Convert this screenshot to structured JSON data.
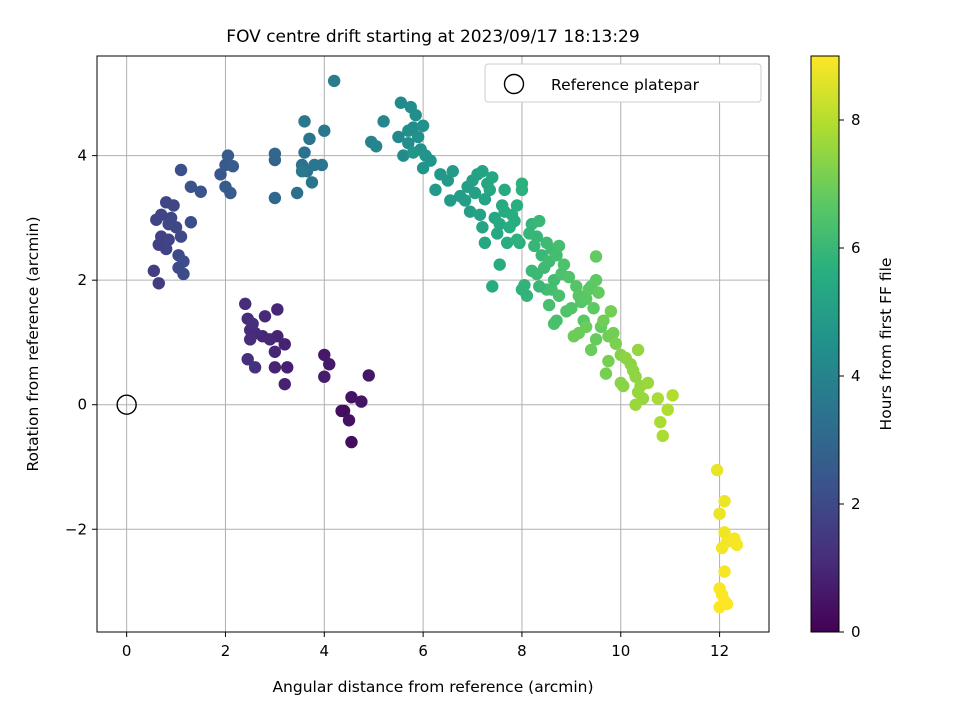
{
  "chart_data": {
    "type": "scatter",
    "title": "FOV centre drift starting at 2023/09/17 18:13:29",
    "xlabel": "Angular distance from reference (arcmin)",
    "ylabel": "Rotation from reference (arcmin)",
    "xlim": [
      -0.6,
      13.0
    ],
    "ylim": [
      -3.65,
      5.6
    ],
    "xticks": [
      0,
      2,
      4,
      6,
      8,
      10,
      12
    ],
    "yticks": [
      -2,
      0,
      2,
      4
    ],
    "grid": true,
    "legend": {
      "position": "top-right",
      "entries": [
        "Reference platepar"
      ]
    },
    "reference_point": {
      "x": 0,
      "y": 0
    },
    "colorbar": {
      "label": "Hours from first FF file",
      "range": [
        0,
        9.0
      ],
      "ticks": [
        0,
        2,
        4,
        6,
        8
      ],
      "colormap": "viridis"
    },
    "points": [
      {
        "x": 4.55,
        "y": -0.6,
        "t": 0.3
      },
      {
        "x": 4.35,
        "y": -0.1,
        "t": 0.35
      },
      {
        "x": 4.5,
        "y": -0.25,
        "t": 0.4
      },
      {
        "x": 4.55,
        "y": 0.12,
        "t": 0.45
      },
      {
        "x": 4.75,
        "y": 0.05,
        "t": 0.5
      },
      {
        "x": 4.9,
        "y": 0.47,
        "t": 0.55
      },
      {
        "x": 4.4,
        "y": -0.1,
        "t": 0.3
      },
      {
        "x": 4.0,
        "y": 0.8,
        "t": 0.6
      },
      {
        "x": 4.1,
        "y": 0.65,
        "t": 0.65
      },
      {
        "x": 4.0,
        "y": 0.45,
        "t": 0.7
      },
      {
        "x": 3.25,
        "y": 0.6,
        "t": 0.8
      },
      {
        "x": 3.2,
        "y": 0.33,
        "t": 0.85
      },
      {
        "x": 3.2,
        "y": 0.97,
        "t": 0.85
      },
      {
        "x": 3.0,
        "y": 0.6,
        "t": 0.9
      },
      {
        "x": 3.05,
        "y": 1.1,
        "t": 0.9
      },
      {
        "x": 3.0,
        "y": 0.85,
        "t": 0.95
      },
      {
        "x": 3.05,
        "y": 1.53,
        "t": 0.95
      },
      {
        "x": 2.9,
        "y": 1.05,
        "t": 1.0
      },
      {
        "x": 2.75,
        "y": 1.1,
        "t": 1.0
      },
      {
        "x": 2.8,
        "y": 1.42,
        "t": 1.05
      },
      {
        "x": 2.6,
        "y": 1.15,
        "t": 1.05
      },
      {
        "x": 2.5,
        "y": 1.2,
        "t": 1.1
      },
      {
        "x": 2.45,
        "y": 1.38,
        "t": 1.1
      },
      {
        "x": 2.4,
        "y": 1.62,
        "t": 1.15
      },
      {
        "x": 2.5,
        "y": 1.05,
        "t": 1.15
      },
      {
        "x": 2.55,
        "y": 1.3,
        "t": 1.2
      },
      {
        "x": 2.45,
        "y": 0.73,
        "t": 1.2
      },
      {
        "x": 2.6,
        "y": 0.6,
        "t": 1.25
      },
      {
        "x": 0.65,
        "y": 1.95,
        "t": 1.6
      },
      {
        "x": 0.55,
        "y": 2.15,
        "t": 1.65
      },
      {
        "x": 0.65,
        "y": 2.57,
        "t": 1.7
      },
      {
        "x": 0.8,
        "y": 2.5,
        "t": 1.75
      },
      {
        "x": 0.7,
        "y": 2.7,
        "t": 1.75
      },
      {
        "x": 0.85,
        "y": 2.65,
        "t": 1.8
      },
      {
        "x": 0.6,
        "y": 2.97,
        "t": 1.8
      },
      {
        "x": 0.7,
        "y": 3.05,
        "t": 1.85
      },
      {
        "x": 0.8,
        "y": 3.25,
        "t": 1.85
      },
      {
        "x": 0.9,
        "y": 3.0,
        "t": 1.9
      },
      {
        "x": 0.95,
        "y": 3.2,
        "t": 1.9
      },
      {
        "x": 0.85,
        "y": 2.9,
        "t": 1.95
      },
      {
        "x": 1.0,
        "y": 2.85,
        "t": 1.95
      },
      {
        "x": 1.05,
        "y": 2.4,
        "t": 2.0
      },
      {
        "x": 1.1,
        "y": 2.7,
        "t": 2.0
      },
      {
        "x": 1.05,
        "y": 2.2,
        "t": 2.05
      },
      {
        "x": 1.15,
        "y": 2.1,
        "t": 2.05
      },
      {
        "x": 1.15,
        "y": 2.3,
        "t": 2.1
      },
      {
        "x": 1.3,
        "y": 2.93,
        "t": 2.1
      },
      {
        "x": 1.1,
        "y": 3.77,
        "t": 2.2
      },
      {
        "x": 1.3,
        "y": 3.5,
        "t": 2.25
      },
      {
        "x": 1.5,
        "y": 3.42,
        "t": 2.3
      },
      {
        "x": 1.9,
        "y": 3.7,
        "t": 2.45
      },
      {
        "x": 2.0,
        "y": 3.85,
        "t": 2.5
      },
      {
        "x": 2.05,
        "y": 4.0,
        "t": 2.55
      },
      {
        "x": 2.1,
        "y": 3.4,
        "t": 2.55
      },
      {
        "x": 2.15,
        "y": 3.83,
        "t": 2.6
      },
      {
        "x": 2.0,
        "y": 3.5,
        "t": 2.6
      },
      {
        "x": 3.0,
        "y": 3.93,
        "t": 2.9
      },
      {
        "x": 3.0,
        "y": 4.03,
        "t": 2.95
      },
      {
        "x": 3.0,
        "y": 3.32,
        "t": 3.0
      },
      {
        "x": 3.45,
        "y": 3.4,
        "t": 3.3
      },
      {
        "x": 3.55,
        "y": 3.85,
        "t": 3.35
      },
      {
        "x": 3.6,
        "y": 4.05,
        "t": 3.35
      },
      {
        "x": 3.65,
        "y": 3.75,
        "t": 3.4
      },
      {
        "x": 3.7,
        "y": 4.27,
        "t": 3.45
      },
      {
        "x": 3.75,
        "y": 3.57,
        "t": 3.45
      },
      {
        "x": 3.8,
        "y": 3.85,
        "t": 3.5
      },
      {
        "x": 3.95,
        "y": 3.85,
        "t": 3.5
      },
      {
        "x": 4.0,
        "y": 4.4,
        "t": 3.55
      },
      {
        "x": 3.6,
        "y": 4.55,
        "t": 3.55
      },
      {
        "x": 3.55,
        "y": 3.75,
        "t": 3.6
      },
      {
        "x": 4.2,
        "y": 5.2,
        "t": 3.7
      },
      {
        "x": 4.95,
        "y": 4.22,
        "t": 4.0
      },
      {
        "x": 5.05,
        "y": 4.15,
        "t": 4.05
      },
      {
        "x": 5.2,
        "y": 4.55,
        "t": 4.1
      },
      {
        "x": 5.5,
        "y": 4.3,
        "t": 4.2
      },
      {
        "x": 5.55,
        "y": 4.85,
        "t": 4.25
      },
      {
        "x": 5.6,
        "y": 4.0,
        "t": 4.3
      },
      {
        "x": 5.7,
        "y": 4.2,
        "t": 4.35
      },
      {
        "x": 5.75,
        "y": 4.78,
        "t": 4.35
      },
      {
        "x": 5.8,
        "y": 4.45,
        "t": 4.4
      },
      {
        "x": 5.85,
        "y": 4.65,
        "t": 4.45
      },
      {
        "x": 5.9,
        "y": 4.3,
        "t": 4.5
      },
      {
        "x": 5.95,
        "y": 4.1,
        "t": 4.5
      },
      {
        "x": 6.0,
        "y": 4.48,
        "t": 4.55
      },
      {
        "x": 6.05,
        "y": 4.0,
        "t": 4.6
      },
      {
        "x": 6.0,
        "y": 3.8,
        "t": 4.6
      },
      {
        "x": 6.15,
        "y": 3.92,
        "t": 4.65
      },
      {
        "x": 5.8,
        "y": 4.05,
        "t": 4.7
      },
      {
        "x": 5.7,
        "y": 4.4,
        "t": 4.4
      },
      {
        "x": 6.35,
        "y": 3.7,
        "t": 4.75
      },
      {
        "x": 6.25,
        "y": 3.45,
        "t": 4.8
      },
      {
        "x": 6.5,
        "y": 3.6,
        "t": 4.85
      },
      {
        "x": 6.55,
        "y": 3.28,
        "t": 4.9
      },
      {
        "x": 6.6,
        "y": 3.75,
        "t": 4.9
      },
      {
        "x": 6.75,
        "y": 3.35,
        "t": 4.95
      },
      {
        "x": 6.85,
        "y": 3.28,
        "t": 5.0
      },
      {
        "x": 6.9,
        "y": 3.5,
        "t": 5.05
      },
      {
        "x": 6.95,
        "y": 3.1,
        "t": 5.05
      },
      {
        "x": 7.0,
        "y": 3.6,
        "t": 5.1
      },
      {
        "x": 7.05,
        "y": 3.4,
        "t": 5.1
      },
      {
        "x": 7.1,
        "y": 3.7,
        "t": 5.15
      },
      {
        "x": 7.15,
        "y": 3.05,
        "t": 5.15
      },
      {
        "x": 7.2,
        "y": 3.75,
        "t": 5.2
      },
      {
        "x": 7.25,
        "y": 3.3,
        "t": 5.2
      },
      {
        "x": 7.3,
        "y": 3.55,
        "t": 5.25
      },
      {
        "x": 7.2,
        "y": 2.85,
        "t": 5.25
      },
      {
        "x": 7.25,
        "y": 2.6,
        "t": 5.3
      },
      {
        "x": 7.35,
        "y": 3.45,
        "t": 5.3
      },
      {
        "x": 7.4,
        "y": 3.65,
        "t": 5.35
      },
      {
        "x": 7.45,
        "y": 3.0,
        "t": 5.35
      },
      {
        "x": 7.5,
        "y": 2.75,
        "t": 5.4
      },
      {
        "x": 7.55,
        "y": 2.9,
        "t": 5.4
      },
      {
        "x": 7.6,
        "y": 3.2,
        "t": 5.45
      },
      {
        "x": 7.65,
        "y": 3.45,
        "t": 5.45
      },
      {
        "x": 7.55,
        "y": 2.25,
        "t": 5.5
      },
      {
        "x": 7.4,
        "y": 1.9,
        "t": 5.5
      },
      {
        "x": 7.7,
        "y": 2.6,
        "t": 5.55
      },
      {
        "x": 7.75,
        "y": 2.85,
        "t": 5.55
      },
      {
        "x": 7.8,
        "y": 3.05,
        "t": 5.6
      },
      {
        "x": 7.85,
        "y": 2.95,
        "t": 5.6
      },
      {
        "x": 7.9,
        "y": 3.2,
        "t": 5.65
      },
      {
        "x": 7.95,
        "y": 2.6,
        "t": 5.65
      },
      {
        "x": 8.0,
        "y": 3.55,
        "t": 5.7
      },
      {
        "x": 8.0,
        "y": 3.45,
        "t": 5.7
      },
      {
        "x": 7.9,
        "y": 2.65,
        "t": 5.75
      },
      {
        "x": 7.65,
        "y": 3.1,
        "t": 5.5
      },
      {
        "x": 8.0,
        "y": 1.85,
        "t": 5.8
      },
      {
        "x": 8.05,
        "y": 1.92,
        "t": 5.85
      },
      {
        "x": 8.1,
        "y": 1.75,
        "t": 5.85
      },
      {
        "x": 8.15,
        "y": 2.75,
        "t": 5.9
      },
      {
        "x": 8.2,
        "y": 2.9,
        "t": 5.9
      },
      {
        "x": 8.25,
        "y": 2.55,
        "t": 5.95
      },
      {
        "x": 8.3,
        "y": 2.7,
        "t": 5.95
      },
      {
        "x": 8.35,
        "y": 2.95,
        "t": 6.0
      },
      {
        "x": 8.4,
        "y": 2.4,
        "t": 6.0
      },
      {
        "x": 8.3,
        "y": 2.1,
        "t": 6.05
      },
      {
        "x": 8.2,
        "y": 2.15,
        "t": 6.05
      },
      {
        "x": 8.45,
        "y": 2.2,
        "t": 6.1
      },
      {
        "x": 8.5,
        "y": 2.6,
        "t": 6.1
      },
      {
        "x": 8.55,
        "y": 2.3,
        "t": 6.15
      },
      {
        "x": 8.6,
        "y": 2.5,
        "t": 6.15
      },
      {
        "x": 8.65,
        "y": 2.0,
        "t": 6.2
      },
      {
        "x": 8.7,
        "y": 2.4,
        "t": 6.2
      },
      {
        "x": 8.75,
        "y": 2.55,
        "t": 6.25
      },
      {
        "x": 8.6,
        "y": 1.85,
        "t": 6.25
      },
      {
        "x": 8.55,
        "y": 1.6,
        "t": 6.3
      },
      {
        "x": 8.7,
        "y": 1.35,
        "t": 6.3
      },
      {
        "x": 8.65,
        "y": 1.3,
        "t": 6.35
      },
      {
        "x": 8.75,
        "y": 1.75,
        "t": 6.35
      },
      {
        "x": 8.8,
        "y": 2.1,
        "t": 6.4
      },
      {
        "x": 8.85,
        "y": 2.25,
        "t": 6.4
      },
      {
        "x": 8.9,
        "y": 1.5,
        "t": 6.45
      },
      {
        "x": 8.95,
        "y": 2.05,
        "t": 6.45
      },
      {
        "x": 9.0,
        "y": 1.55,
        "t": 6.5
      },
      {
        "x": 8.5,
        "y": 1.85,
        "t": 6.2
      },
      {
        "x": 8.35,
        "y": 1.9,
        "t": 6.0
      },
      {
        "x": 9.1,
        "y": 1.9,
        "t": 6.55
      },
      {
        "x": 9.15,
        "y": 1.75,
        "t": 6.6
      },
      {
        "x": 9.2,
        "y": 1.65,
        "t": 6.6
      },
      {
        "x": 9.25,
        "y": 1.35,
        "t": 6.65
      },
      {
        "x": 9.3,
        "y": 1.7,
        "t": 6.65
      },
      {
        "x": 9.35,
        "y": 1.85,
        "t": 6.7
      },
      {
        "x": 9.4,
        "y": 1.9,
        "t": 6.7
      },
      {
        "x": 9.45,
        "y": 1.55,
        "t": 6.75
      },
      {
        "x": 9.5,
        "y": 2.0,
        "t": 6.75
      },
      {
        "x": 9.5,
        "y": 2.38,
        "t": 6.8
      },
      {
        "x": 9.55,
        "y": 1.8,
        "t": 6.8
      },
      {
        "x": 9.6,
        "y": 1.25,
        "t": 6.85
      },
      {
        "x": 9.5,
        "y": 1.05,
        "t": 6.85
      },
      {
        "x": 9.4,
        "y": 0.88,
        "t": 6.9
      },
      {
        "x": 9.3,
        "y": 1.25,
        "t": 6.9
      },
      {
        "x": 9.15,
        "y": 1.15,
        "t": 6.95
      },
      {
        "x": 9.05,
        "y": 1.1,
        "t": 6.95
      },
      {
        "x": 9.65,
        "y": 1.35,
        "t": 7.0
      },
      {
        "x": 9.75,
        "y": 1.1,
        "t": 7.0
      },
      {
        "x": 9.8,
        "y": 1.5,
        "t": 7.05
      },
      {
        "x": 9.85,
        "y": 1.15,
        "t": 7.05
      },
      {
        "x": 9.75,
        "y": 0.7,
        "t": 7.1
      },
      {
        "x": 9.7,
        "y": 0.5,
        "t": 7.1
      },
      {
        "x": 9.9,
        "y": 0.98,
        "t": 7.15
      },
      {
        "x": 10.0,
        "y": 0.8,
        "t": 7.3
      },
      {
        "x": 10.05,
        "y": 0.3,
        "t": 7.35
      },
      {
        "x": 10.0,
        "y": 0.35,
        "t": 7.35
      },
      {
        "x": 10.1,
        "y": 0.75,
        "t": 7.4
      },
      {
        "x": 10.2,
        "y": 0.65,
        "t": 7.4
      },
      {
        "x": 10.25,
        "y": 0.55,
        "t": 7.45
      },
      {
        "x": 10.3,
        "y": 0.45,
        "t": 7.45
      },
      {
        "x": 10.35,
        "y": 0.88,
        "t": 7.5
      },
      {
        "x": 10.4,
        "y": 0.3,
        "t": 7.5
      },
      {
        "x": 10.45,
        "y": 0.1,
        "t": 7.55
      },
      {
        "x": 10.35,
        "y": 0.2,
        "t": 7.55
      },
      {
        "x": 10.3,
        "y": 0.0,
        "t": 7.6
      },
      {
        "x": 10.55,
        "y": 0.35,
        "t": 7.6
      },
      {
        "x": 10.75,
        "y": 0.1,
        "t": 7.8
      },
      {
        "x": 10.8,
        "y": -0.28,
        "t": 7.85
      },
      {
        "x": 10.85,
        "y": -0.5,
        "t": 7.85
      },
      {
        "x": 10.95,
        "y": -0.08,
        "t": 7.9
      },
      {
        "x": 11.05,
        "y": 0.15,
        "t": 7.95
      },
      {
        "x": 11.95,
        "y": -1.05,
        "t": 8.7
      },
      {
        "x": 12.0,
        "y": -1.75,
        "t": 8.75
      },
      {
        "x": 12.1,
        "y": -1.55,
        "t": 8.8
      },
      {
        "x": 12.1,
        "y": -2.05,
        "t": 8.8
      },
      {
        "x": 12.05,
        "y": -2.3,
        "t": 8.85
      },
      {
        "x": 12.15,
        "y": -2.2,
        "t": 8.85
      },
      {
        "x": 12.3,
        "y": -2.15,
        "t": 8.9
      },
      {
        "x": 12.35,
        "y": -2.25,
        "t": 8.9
      },
      {
        "x": 12.1,
        "y": -2.68,
        "t": 8.9
      },
      {
        "x": 12.0,
        "y": -2.95,
        "t": 8.95
      },
      {
        "x": 12.05,
        "y": -3.05,
        "t": 8.95
      },
      {
        "x": 12.1,
        "y": -3.15,
        "t": 9.0
      },
      {
        "x": 12.15,
        "y": -3.2,
        "t": 9.0
      },
      {
        "x": 12.0,
        "y": -3.25,
        "t": 9.0
      }
    ]
  }
}
